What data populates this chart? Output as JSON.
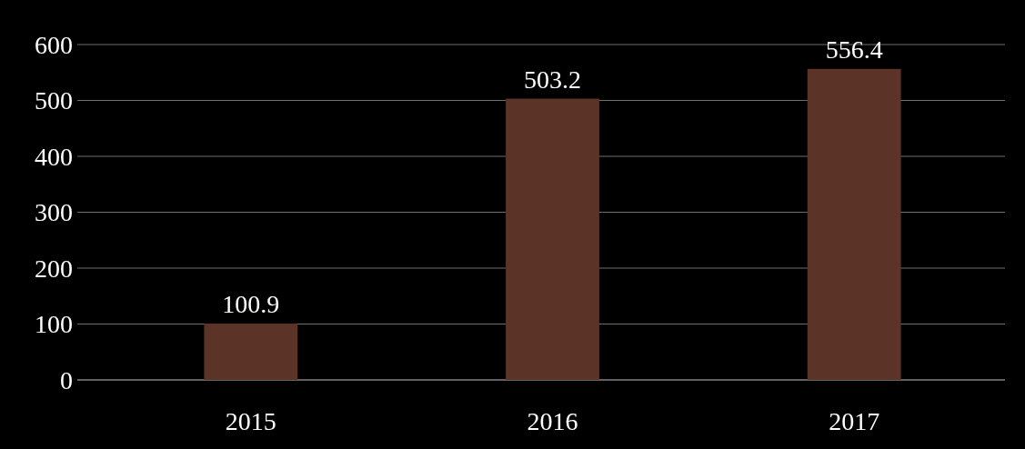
{
  "chart_data": {
    "type": "bar",
    "categories": [
      "2015",
      "2016",
      "2017"
    ],
    "values": [
      100.9,
      503.2,
      556.4
    ],
    "color": "#5b3427",
    "ylim": [
      0,
      600
    ],
    "yticks": [
      0,
      100,
      200,
      300,
      400,
      500,
      600
    ],
    "grid": "y",
    "data_labels": true
  }
}
